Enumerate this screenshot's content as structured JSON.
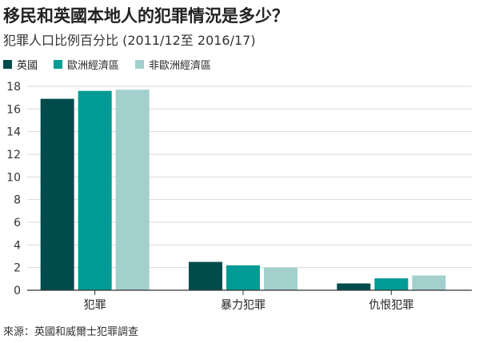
{
  "title": "移民和英國本地人的犯罪情況是多少？",
  "subtitle": "犯罪人口比例百分比 (2011/12至 2016/17)",
  "source": "來源：英國和威爾士犯罪調查",
  "colors": {
    "uk": "#004c4c",
    "eea": "#009b94",
    "non_eea": "#a3cfcd",
    "grid": "#d9d9d9",
    "axis": "#333333"
  },
  "chart_data": {
    "type": "bar",
    "categories": [
      "犯罪",
      "暴力犯罪",
      "仇恨犯罪"
    ],
    "series": [
      {
        "name": "英國",
        "values": [
          16.9,
          2.5,
          0.6
        ]
      },
      {
        "name": "歐洲經濟區",
        "values": [
          17.6,
          2.2,
          1.05
        ]
      },
      {
        "name": "非歐洲經濟區",
        "values": [
          17.7,
          2.0,
          1.3
        ]
      }
    ],
    "yticks": [
      "0",
      "2",
      "4",
      "6",
      "8",
      "10",
      "12",
      "14",
      "16",
      "18"
    ],
    "ylim": [
      0,
      18
    ],
    "grid": true,
    "legend_position": "top-left"
  }
}
